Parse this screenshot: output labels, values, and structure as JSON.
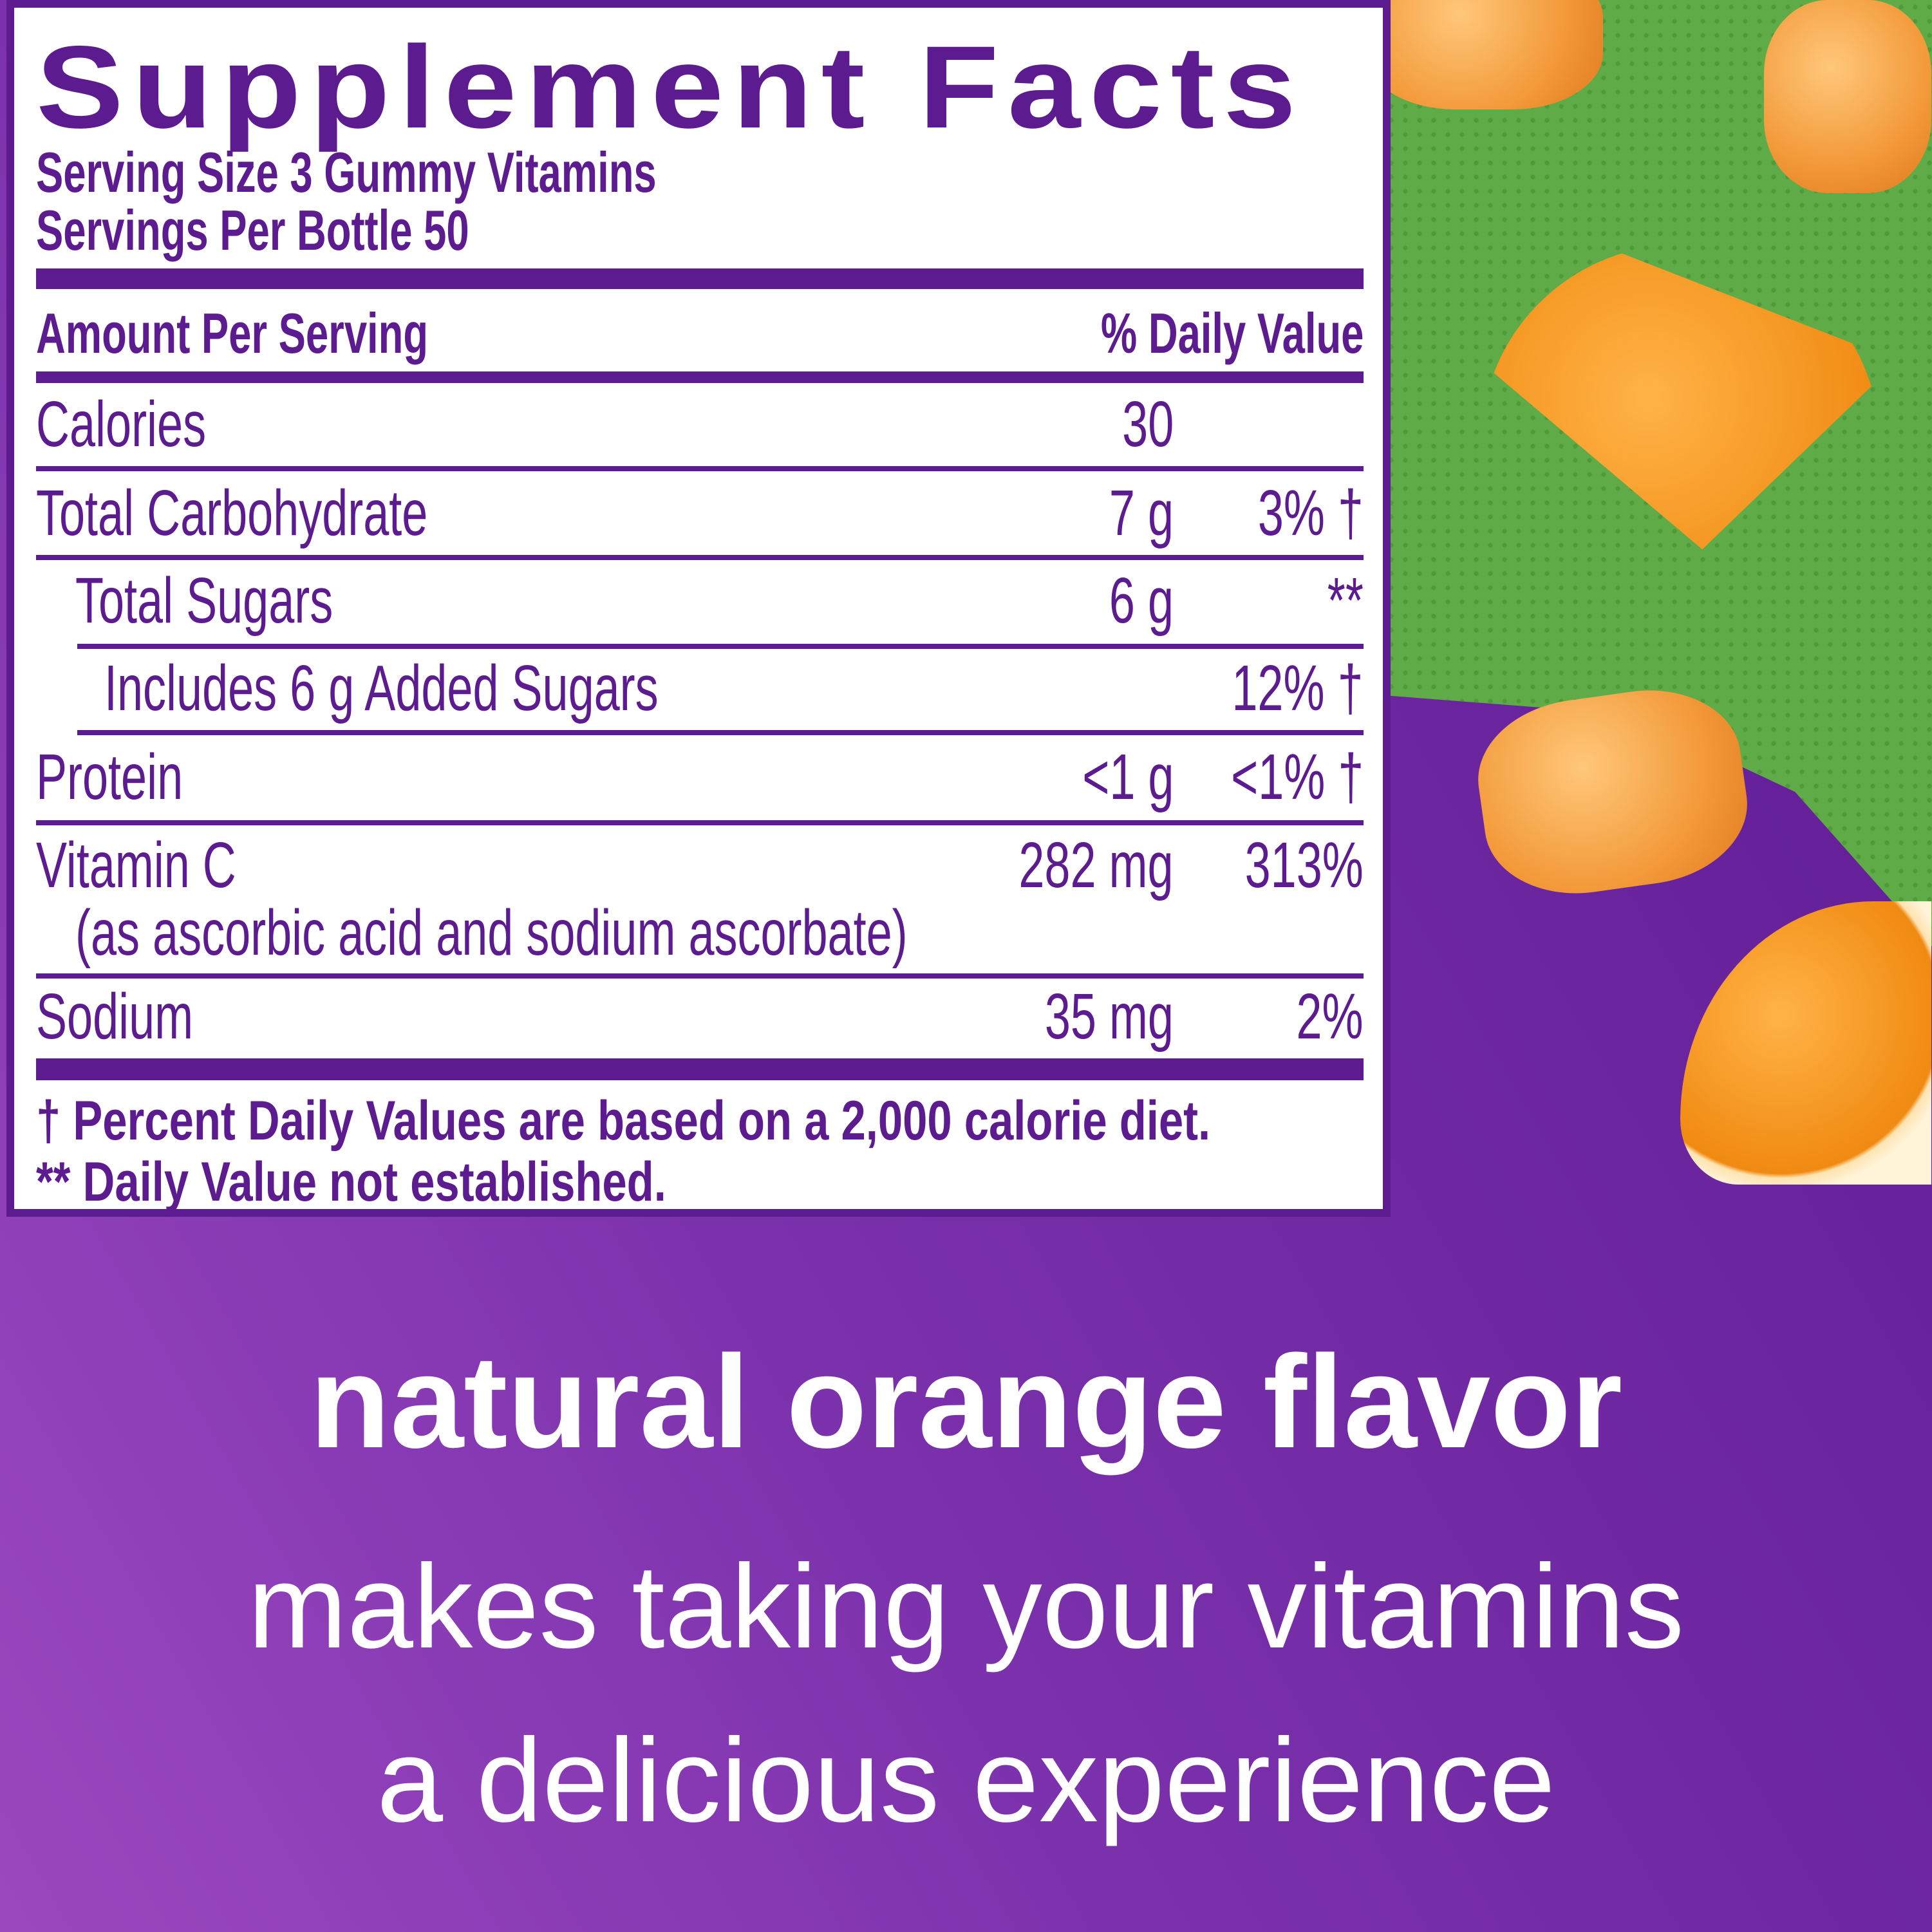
{
  "label": {
    "title": "Supplement Facts",
    "serving_size": "Serving Size 3 Gummy Vitamins",
    "servings_per": "Servings Per Bottle 50",
    "amount_header": "Amount Per Serving",
    "dv_header": "% Daily Value",
    "rows": [
      {
        "name": "Calories",
        "amount": "30",
        "dv": ""
      },
      {
        "name": "Total Carbohydrate",
        "amount": "7 g",
        "dv": "3% †"
      },
      {
        "name": "Total Sugars",
        "amount": "6 g",
        "dv": "**"
      },
      {
        "name": "Includes 6 g Added Sugars",
        "amount": "",
        "dv": "12% †"
      },
      {
        "name": "Protein",
        "amount": "<1 g",
        "dv": "<1% †"
      },
      {
        "name": "Vitamin C",
        "sub": "(as ascorbic acid and sodium ascorbate)",
        "amount": "282 mg",
        "dv": "313%"
      },
      {
        "name": "Sodium",
        "amount": "35 mg",
        "dv": "2%"
      }
    ],
    "footnote1": "† Percent Daily Values are based on a 2,000 calorie diet.",
    "footnote2": "** Daily Value not established."
  },
  "tagline": {
    "line1": "natural orange flavor",
    "line2": "makes taking your vitamins",
    "line3": "a delicious experience"
  },
  "colors": {
    "purple": "#5c1b8f",
    "green": "#5fab47",
    "orange": "#f39a3a"
  }
}
